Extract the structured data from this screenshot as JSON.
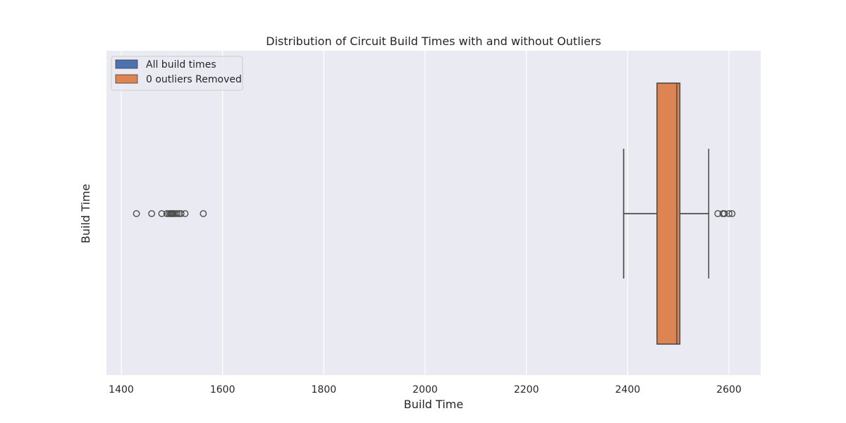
{
  "chart_data": {
    "type": "boxplot",
    "title": "Distribution of Circuit Build Times with and without Outliers",
    "xlabel": "Build Time",
    "ylabel": "Build Time",
    "xlim": [
      1400,
      2600
    ],
    "xticks": [
      1400,
      1600,
      1800,
      2000,
      2200,
      2400,
      2600
    ],
    "grid": true,
    "legend_position": "top-left",
    "series": [
      {
        "name": "All build times",
        "color": "#4c72b0",
        "whisker_low": 2392,
        "q1": 2458,
        "median": 2497,
        "q3": 2503,
        "whisker_high": 2560,
        "outliers": [
          1430,
          1460,
          1480,
          1490,
          1494,
          1497,
          1499,
          1501,
          1503,
          1506,
          1510,
          1514,
          1518,
          1526,
          1562,
          2578,
          2588,
          2591,
          2600,
          2606
        ]
      },
      {
        "name": "0 outliers Removed",
        "color": "#dd8452",
        "whisker_low": 2392,
        "q1": 2458,
        "median": 2497,
        "q3": 2503,
        "whisker_high": 2560,
        "outliers": []
      }
    ]
  }
}
